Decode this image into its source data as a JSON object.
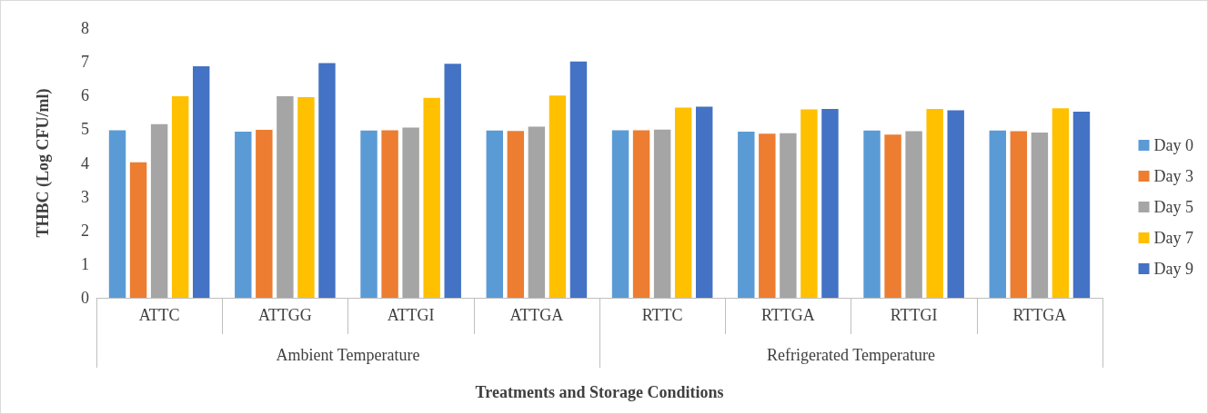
{
  "chart_data": {
    "type": "bar",
    "ylabel": "THBC (Log CFU/ml)",
    "xlabel": "Treatments and Storage Conditions",
    "categories": [
      "ATTC",
      "ATTGG",
      "ATTGI",
      "ATTGA",
      "RTTC",
      "RTTGA",
      "RTTGI",
      "RTTGA"
    ],
    "series": [
      {
        "name": "Day 0",
        "color": "#5b9bd5",
        "values": [
          4.97,
          4.93,
          4.96,
          4.96,
          4.97,
          4.93,
          4.96,
          4.96
        ]
      },
      {
        "name": "Day 3",
        "color": "#ed7d31",
        "values": [
          4.02,
          4.98,
          4.97,
          4.95,
          4.97,
          4.87,
          4.84,
          4.94
        ]
      },
      {
        "name": "Day 5",
        "color": "#a5a5a5",
        "values": [
          5.15,
          5.98,
          5.05,
          5.08,
          4.99,
          4.88,
          4.94,
          4.9
        ]
      },
      {
        "name": "Day 7",
        "color": "#ffc000",
        "values": [
          5.98,
          5.95,
          5.93,
          6.0,
          5.64,
          5.59,
          5.6,
          5.62
        ]
      },
      {
        "name": "Day 9",
        "color": "#4472c4",
        "values": [
          6.87,
          6.96,
          6.94,
          7.01,
          5.67,
          5.6,
          5.56,
          5.52
        ]
      }
    ],
    "annotations": [
      "Ambient Temperature",
      "Refrigerated Temperature"
    ],
    "ylim": [
      0,
      8
    ],
    "yticks": [
      0,
      1,
      2,
      3,
      4,
      5,
      6,
      7,
      8
    ],
    "grid": false,
    "legend": "right"
  }
}
